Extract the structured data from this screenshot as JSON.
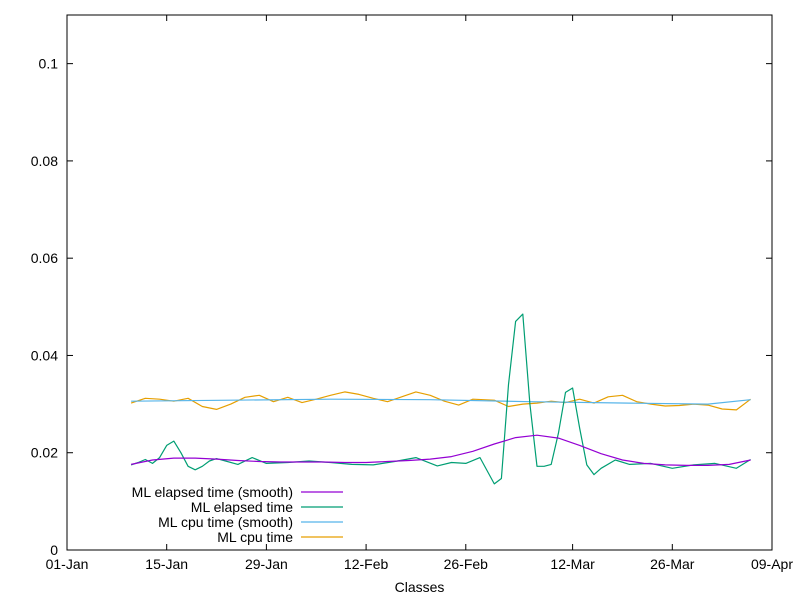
{
  "chart_data": {
    "type": "line",
    "title": "",
    "xlabel": "Classes",
    "ylabel": "",
    "xlim": [
      "2000-01-01",
      "2000-04-09"
    ],
    "ylim": [
      0,
      0.11
    ],
    "x_ticks": [
      {
        "date": "2000-01-01",
        "label": "01-Jan"
      },
      {
        "date": "2000-01-15",
        "label": "15-Jan"
      },
      {
        "date": "2000-01-29",
        "label": "29-Jan"
      },
      {
        "date": "2000-02-12",
        "label": "12-Feb"
      },
      {
        "date": "2000-02-26",
        "label": "26-Feb"
      },
      {
        "date": "2000-03-12",
        "label": "12-Mar"
      },
      {
        "date": "2000-03-26",
        "label": "26-Mar"
      },
      {
        "date": "2000-04-09",
        "label": "09-Apr"
      }
    ],
    "y_ticks": [
      {
        "value": 0,
        "label": "0"
      },
      {
        "value": 0.02,
        "label": "0.02"
      },
      {
        "value": 0.04,
        "label": "0.04"
      },
      {
        "value": 0.06,
        "label": "0.06"
      },
      {
        "value": 0.08,
        "label": "0.08"
      },
      {
        "value": 0.1,
        "label": "0.1"
      }
    ],
    "grid": false,
    "legend_position": "bottom-left",
    "series": [
      {
        "name": "ML elapsed time (smooth)",
        "color": "#9400d3",
        "x": [
          "2000-01-10",
          "2000-01-13",
          "2000-01-16",
          "2000-01-19",
          "2000-01-22",
          "2000-01-25",
          "2000-01-28",
          "2000-01-31",
          "2000-02-03",
          "2000-02-06",
          "2000-02-09",
          "2000-02-12",
          "2000-02-15",
          "2000-02-18",
          "2000-02-21",
          "2000-02-24",
          "2000-02-27",
          "2000-03-01",
          "2000-03-04",
          "2000-03-07",
          "2000-03-10",
          "2000-03-13",
          "2000-03-16",
          "2000-03-19",
          "2000-03-22",
          "2000-03-25",
          "2000-03-28",
          "2000-03-31",
          "2000-04-03",
          "2000-04-06"
        ],
        "y": [
          0.0176,
          0.0185,
          0.0189,
          0.0189,
          0.0187,
          0.0184,
          0.0182,
          0.0181,
          0.0181,
          0.0181,
          0.018,
          0.018,
          0.0182,
          0.0184,
          0.0187,
          0.0192,
          0.0203,
          0.0218,
          0.0231,
          0.0236,
          0.023,
          0.0215,
          0.0198,
          0.0185,
          0.0178,
          0.0175,
          0.0174,
          0.0174,
          0.0176,
          0.0185
        ]
      },
      {
        "name": "ML elapsed time",
        "color": "#009e73",
        "x": [
          "2000-01-10",
          "2000-01-11",
          "2000-01-12",
          "2000-01-13",
          "2000-01-14",
          "2000-01-15",
          "2000-01-16",
          "2000-01-17",
          "2000-01-18",
          "2000-01-19",
          "2000-01-20",
          "2000-01-21",
          "2000-01-22",
          "2000-01-23",
          "2000-01-25",
          "2000-01-27",
          "2000-01-29",
          "2000-02-01",
          "2000-02-04",
          "2000-02-07",
          "2000-02-10",
          "2000-02-13",
          "2000-02-16",
          "2000-02-19",
          "2000-02-22",
          "2000-02-24",
          "2000-02-26",
          "2000-02-28",
          "2000-03-01",
          "2000-03-02",
          "2000-03-03",
          "2000-03-04",
          "2000-03-05",
          "2000-03-06",
          "2000-03-07",
          "2000-03-08",
          "2000-03-09",
          "2000-03-10",
          "2000-03-11",
          "2000-03-12",
          "2000-03-13",
          "2000-03-14",
          "2000-03-15",
          "2000-03-16",
          "2000-03-18",
          "2000-03-20",
          "2000-03-23",
          "2000-03-26",
          "2000-03-29",
          "2000-04-01",
          "2000-04-04",
          "2000-04-06"
        ],
        "y": [
          0.0175,
          0.018,
          0.0186,
          0.0178,
          0.019,
          0.0215,
          0.0224,
          0.02,
          0.0172,
          0.0165,
          0.0172,
          0.0183,
          0.0188,
          0.0184,
          0.0176,
          0.019,
          0.0178,
          0.018,
          0.0183,
          0.018,
          0.0176,
          0.0175,
          0.0182,
          0.019,
          0.0173,
          0.018,
          0.0178,
          0.019,
          0.0136,
          0.0147,
          0.034,
          0.047,
          0.0485,
          0.03,
          0.0172,
          0.0172,
          0.0176,
          0.024,
          0.0324,
          0.0333,
          0.025,
          0.0175,
          0.0155,
          0.0168,
          0.0185,
          0.0176,
          0.0178,
          0.0168,
          0.0175,
          0.0178,
          0.0168,
          0.0186
        ]
      },
      {
        "name": "ML cpu time (smooth)",
        "color": "#56b4e9",
        "x": [
          "2000-01-10",
          "2000-01-24",
          "2000-02-07",
          "2000-02-21",
          "2000-03-06",
          "2000-03-20",
          "2000-03-31",
          "2000-04-06"
        ],
        "y": [
          0.0306,
          0.0308,
          0.031,
          0.0309,
          0.0305,
          0.0302,
          0.03,
          0.0309
        ]
      },
      {
        "name": "ML cpu time",
        "color": "#e69f00",
        "x": [
          "2000-01-10",
          "2000-01-12",
          "2000-01-14",
          "2000-01-16",
          "2000-01-18",
          "2000-01-20",
          "2000-01-22",
          "2000-01-24",
          "2000-01-26",
          "2000-01-28",
          "2000-01-30",
          "2000-02-01",
          "2000-02-03",
          "2000-02-05",
          "2000-02-07",
          "2000-02-09",
          "2000-02-11",
          "2000-02-13",
          "2000-02-15",
          "2000-02-17",
          "2000-02-19",
          "2000-02-21",
          "2000-02-23",
          "2000-02-25",
          "2000-02-27",
          "2000-03-01",
          "2000-03-03",
          "2000-03-05",
          "2000-03-07",
          "2000-03-09",
          "2000-03-11",
          "2000-03-13",
          "2000-03-15",
          "2000-03-17",
          "2000-03-19",
          "2000-03-21",
          "2000-03-23",
          "2000-03-25",
          "2000-03-27",
          "2000-03-29",
          "2000-03-31",
          "2000-04-02",
          "2000-04-04",
          "2000-04-06"
        ],
        "y": [
          0.0302,
          0.0312,
          0.031,
          0.0306,
          0.0312,
          0.0295,
          0.0289,
          0.03,
          0.0314,
          0.0318,
          0.0305,
          0.0314,
          0.0303,
          0.031,
          0.0318,
          0.0325,
          0.032,
          0.0312,
          0.0305,
          0.0315,
          0.0325,
          0.0318,
          0.0306,
          0.0298,
          0.031,
          0.0308,
          0.0295,
          0.03,
          0.0302,
          0.0306,
          0.0303,
          0.031,
          0.0302,
          0.0315,
          0.0318,
          0.0305,
          0.03,
          0.0296,
          0.0297,
          0.03,
          0.0298,
          0.029,
          0.0288,
          0.031
        ]
      }
    ]
  }
}
